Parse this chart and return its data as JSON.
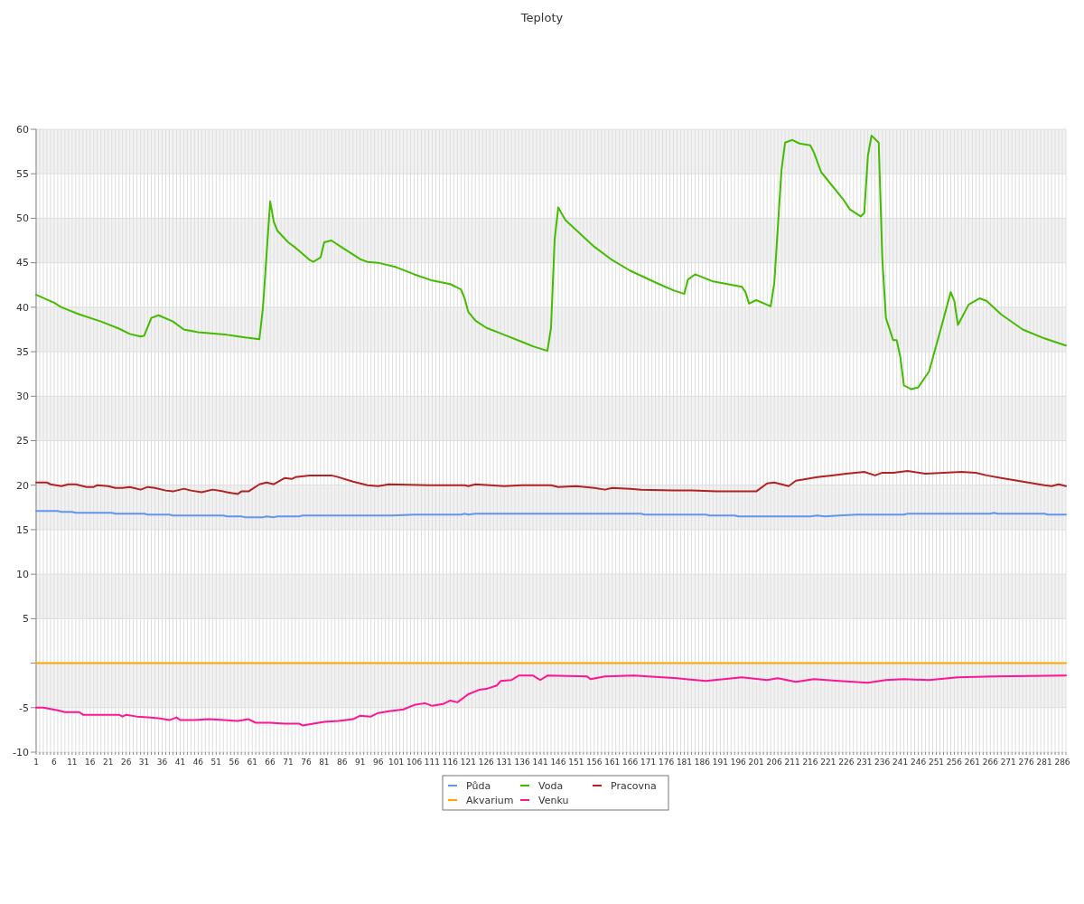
{
  "chart_data": {
    "type": "line",
    "title": "Teploty",
    "xlim": [
      1,
      287
    ],
    "xticks": [
      1,
      {
        "value": 2,
        "label": null
      },
      {
        "value": 3,
        "label": null
      },
      {
        "value": 4,
        "label": null
      },
      {
        "value": 5,
        "label": null
      },
      6,
      {
        "value": 7,
        "label": null
      },
      {
        "value": 8,
        "label": null
      },
      {
        "value": 9,
        "label": null
      },
      {
        "value": 10,
        "label": null
      },
      11,
      {
        "value": 12,
        "label": null
      },
      {
        "value": 13,
        "label": null
      },
      {
        "value": 14,
        "label": null
      },
      {
        "value": 15,
        "label": null
      },
      16,
      {
        "value": 17,
        "label": null
      },
      {
        "value": 18,
        "label": null
      },
      {
        "value": 19,
        "label": null
      },
      {
        "value": 20,
        "label": null
      },
      21,
      {
        "value": 22,
        "label": null
      },
      {
        "value": 23,
        "label": null
      },
      {
        "value": 24,
        "label": null
      },
      {
        "value": 25,
        "label": null
      },
      26,
      {
        "value": 27,
        "label": null
      },
      {
        "value": 28,
        "label": null
      },
      {
        "value": 29,
        "label": null
      },
      {
        "value": 30,
        "label": null
      },
      31,
      {
        "value": 32,
        "label": null
      },
      {
        "value": 33,
        "label": null
      },
      {
        "value": 34,
        "label": null
      },
      {
        "value": 35,
        "label": null
      },
      36,
      {
        "value": 37,
        "label": null
      },
      {
        "value": 38,
        "label": null
      },
      {
        "value": 39,
        "label": null
      },
      {
        "value": 40,
        "label": null
      },
      41,
      {
        "value": 42,
        "label": null
      },
      {
        "value": 43,
        "label": null
      },
      {
        "value": 44,
        "label": null
      },
      {
        "value": 45,
        "label": null
      },
      46,
      {
        "value": 47,
        "label": null
      },
      {
        "value": 48,
        "label": null
      },
      {
        "value": 49,
        "label": null
      },
      {
        "value": 50,
        "label": null
      },
      51,
      {
        "value": 52,
        "label": null
      },
      {
        "value": 53,
        "label": null
      },
      {
        "value": 54,
        "label": null
      },
      {
        "value": 55,
        "label": null
      },
      56,
      {
        "value": 57,
        "label": null
      },
      {
        "value": 58,
        "label": null
      },
      {
        "value": 59,
        "label": null
      },
      {
        "value": 60,
        "label": null
      },
      61,
      {
        "value": 62,
        "label": null
      },
      {
        "value": 63,
        "label": null
      },
      {
        "value": 64,
        "label": null
      },
      {
        "value": 65,
        "label": null
      },
      66,
      {
        "value": 67,
        "label": null
      },
      {
        "value": 68,
        "label": null
      },
      {
        "value": 69,
        "label": null
      },
      {
        "value": 70,
        "label": null
      },
      71,
      {
        "value": 72,
        "label": null
      },
      {
        "value": 73,
        "label": null
      },
      {
        "value": 74,
        "label": null
      },
      {
        "value": 75,
        "label": null
      },
      76,
      {
        "value": 77,
        "label": null
      },
      {
        "value": 78,
        "label": null
      },
      {
        "value": 79,
        "label": null
      },
      {
        "value": 80,
        "label": null
      },
      81,
      {
        "value": 82,
        "label": null
      },
      {
        "value": 83,
        "label": null
      },
      {
        "value": 84,
        "label": null
      },
      {
        "value": 85,
        "label": null
      },
      86,
      {
        "value": 87,
        "label": null
      },
      {
        "value": 88,
        "label": null
      },
      {
        "value": 89,
        "label": null
      },
      {
        "value": 90,
        "label": null
      },
      91,
      {
        "value": 92,
        "label": null
      },
      {
        "value": 93,
        "label": null
      },
      {
        "value": 94,
        "label": null
      },
      {
        "value": 95,
        "label": null
      },
      96,
      {
        "value": 97,
        "label": null
      },
      {
        "value": 98,
        "label": null
      },
      {
        "value": 99,
        "label": null
      },
      {
        "value": 100,
        "label": null
      },
      101,
      {
        "value": 102,
        "label": null
      },
      {
        "value": 103,
        "label": null
      },
      {
        "value": 104,
        "label": null
      },
      {
        "value": 105,
        "label": null
      },
      106,
      {
        "value": 107,
        "label": null
      },
      {
        "value": 108,
        "label": null
      },
      {
        "value": 109,
        "label": null
      },
      {
        "value": 110,
        "label": null
      },
      111,
      {
        "value": 112,
        "label": null
      },
      {
        "value": 113,
        "label": null
      },
      {
        "value": 114,
        "label": null
      },
      {
        "value": 115,
        "label": null
      },
      116,
      {
        "value": 117,
        "label": null
      },
      {
        "value": 118,
        "label": null
      },
      {
        "value": 119,
        "label": null
      },
      {
        "value": 120,
        "label": null
      },
      121,
      {
        "value": 122,
        "label": null
      },
      {
        "value": 123,
        "label": null
      },
      {
        "value": 124,
        "label": null
      },
      {
        "value": 125,
        "label": null
      },
      126,
      {
        "value": 127,
        "label": null
      },
      {
        "value": 128,
        "label": null
      },
      {
        "value": 129,
        "label": null
      },
      {
        "value": 130,
        "label": null
      },
      131,
      {
        "value": 132,
        "label": null
      },
      {
        "value": 133,
        "label": null
      },
      {
        "value": 134,
        "label": null
      },
      {
        "value": 135,
        "label": null
      },
      136,
      {
        "value": 137,
        "label": null
      },
      {
        "value": 138,
        "label": null
      },
      {
        "value": 139,
        "label": null
      },
      {
        "value": 140,
        "label": null
      },
      141,
      {
        "value": 142,
        "label": null
      },
      {
        "value": 143,
        "label": null
      },
      {
        "value": 144,
        "label": null
      },
      {
        "value": 145,
        "label": null
      },
      146,
      {
        "value": 147,
        "label": null
      },
      {
        "value": 148,
        "label": null
      },
      {
        "value": 149,
        "label": null
      },
      {
        "value": 150,
        "label": null
      },
      151,
      {
        "value": 152,
        "label": null
      },
      {
        "value": 153,
        "label": null
      },
      {
        "value": 154,
        "label": null
      },
      {
        "value": 155,
        "label": null
      },
      156,
      {
        "value": 157,
        "label": null
      },
      {
        "value": 158,
        "label": null
      },
      {
        "value": 159,
        "label": null
      },
      {
        "value": 160,
        "label": null
      },
      161,
      {
        "value": 162,
        "label": null
      },
      {
        "value": 163,
        "label": null
      },
      {
        "value": 164,
        "label": null
      },
      {
        "value": 165,
        "label": null
      },
      166,
      {
        "value": 167,
        "label": null
      },
      {
        "value": 168,
        "label": null
      },
      {
        "value": 169,
        "label": null
      },
      {
        "value": 170,
        "label": null
      },
      171,
      {
        "value": 172,
        "label": null
      },
      {
        "value": 173,
        "label": null
      },
      {
        "value": 174,
        "label": null
      },
      {
        "value": 175,
        "label": null
      },
      176,
      {
        "value": 177,
        "label": null
      },
      {
        "value": 178,
        "label": null
      },
      {
        "value": 179,
        "label": null
      },
      {
        "value": 180,
        "label": null
      },
      181,
      {
        "value": 182,
        "label": null
      },
      {
        "value": 183,
        "label": null
      },
      {
        "value": 184,
        "label": null
      },
      {
        "value": 185,
        "label": null
      },
      186,
      {
        "value": 187,
        "label": null
      },
      {
        "value": 188,
        "label": null
      },
      {
        "value": 189,
        "label": null
      },
      {
        "value": 190,
        "label": null
      },
      191,
      {
        "value": 192,
        "label": null
      },
      {
        "value": 193,
        "label": null
      },
      {
        "value": 194,
        "label": null
      },
      {
        "value": 195,
        "label": null
      },
      196,
      {
        "value": 197,
        "label": null
      },
      {
        "value": 198,
        "label": null
      },
      {
        "value": 199,
        "label": null
      },
      {
        "value": 200,
        "label": null
      },
      201,
      {
        "value": 202,
        "label": null
      },
      {
        "value": 203,
        "label": null
      },
      {
        "value": 204,
        "label": null
      },
      {
        "value": 205,
        "label": null
      },
      206,
      {
        "value": 207,
        "label": null
      },
      {
        "value": 208,
        "label": null
      },
      {
        "value": 209,
        "label": null
      },
      {
        "value": 210,
        "label": null
      },
      211,
      {
        "value": 212,
        "label": null
      },
      {
        "value": 213,
        "label": null
      },
      {
        "value": 214,
        "label": null
      },
      {
        "value": 215,
        "label": null
      },
      216,
      {
        "value": 217,
        "label": null
      },
      {
        "value": 218,
        "label": null
      },
      {
        "value": 219,
        "label": null
      },
      {
        "value": 220,
        "label": null
      },
      221,
      {
        "value": 222,
        "label": null
      },
      {
        "value": 223,
        "label": null
      },
      {
        "value": 224,
        "label": null
      },
      {
        "value": 225,
        "label": null
      },
      226,
      {
        "value": 227,
        "label": null
      },
      {
        "value": 228,
        "label": null
      },
      {
        "value": 229,
        "label": null
      },
      {
        "value": 230,
        "label": null
      },
      231,
      {
        "value": 232,
        "label": null
      },
      {
        "value": 233,
        "label": null
      },
      {
        "value": 234,
        "label": null
      },
      {
        "value": 235,
        "label": null
      },
      236,
      {
        "value": 237,
        "label": null
      },
      {
        "value": 238,
        "label": null
      },
      {
        "value": 239,
        "label": null
      },
      {
        "value": 240,
        "label": null
      },
      241,
      {
        "value": 242,
        "label": null
      },
      {
        "value": 243,
        "label": null
      },
      {
        "value": 244,
        "label": null
      },
      {
        "value": 245,
        "label": null
      },
      246,
      {
        "value": 247,
        "label": null
      },
      {
        "value": 248,
        "label": null
      },
      {
        "value": 249,
        "label": null
      },
      {
        "value": 250,
        "label": null
      },
      251,
      {
        "value": 252,
        "label": null
      },
      {
        "value": 253,
        "label": null
      },
      {
        "value": 254,
        "label": null
      },
      {
        "value": 255,
        "label": null
      },
      256,
      {
        "value": 257,
        "label": null
      },
      {
        "value": 258,
        "label": null
      },
      {
        "value": 259,
        "label": null
      },
      {
        "value": 260,
        "label": null
      },
      261,
      {
        "value": 262,
        "label": null
      },
      {
        "value": 263,
        "label": null
      },
      {
        "value": 264,
        "label": null
      },
      {
        "value": 265,
        "label": null
      },
      266,
      {
        "value": 267,
        "label": null
      },
      {
        "value": 268,
        "label": null
      },
      {
        "value": 269,
        "label": null
      },
      {
        "value": 270,
        "label": null
      },
      271,
      {
        "value": 272,
        "label": null
      },
      {
        "value": 273,
        "label": null
      },
      {
        "value": 274,
        "label": null
      },
      {
        "value": 275,
        "label": null
      },
      276,
      {
        "value": 277,
        "label": null
      },
      {
        "value": 278,
        "label": null
      },
      {
        "value": 279,
        "label": null
      },
      {
        "value": 280,
        "label": null
      },
      281,
      {
        "value": 282,
        "label": null
      },
      {
        "value": 283,
        "label": null
      },
      {
        "value": 284,
        "label": null
      },
      {
        "value": 285,
        "label": null
      },
      286,
      {
        "value": 287,
        "label": null
      }
    ],
    "ylim": [
      -10,
      60
    ],
    "yticks": [
      -10,
      -5,
      {
        "value": 0,
        "label": null
      },
      5,
      10,
      15,
      20,
      25,
      30,
      35,
      40,
      45,
      50,
      55,
      60
    ],
    "grid": true,
    "legend": "bottom",
    "marker": "none",
    "line_style": "solid",
    "series": [
      {
        "name": "Půda",
        "color": "#6495ed",
        "x": [
          1,
          7,
          8,
          11,
          12,
          22,
          23,
          31,
          32,
          38,
          39,
          53,
          54,
          58,
          59,
          64,
          65,
          67,
          68,
          74,
          75,
          100,
          106,
          119,
          120,
          121,
          123,
          169,
          170,
          187,
          188,
          195,
          196,
          216,
          218,
          220,
          224,
          229,
          242,
          243,
          266,
          267,
          268,
          281,
          282,
          287
        ],
        "values": [
          17.1,
          17.1,
          17.0,
          17.0,
          16.9,
          16.9,
          16.8,
          16.8,
          16.7,
          16.7,
          16.6,
          16.6,
          16.5,
          16.5,
          16.4,
          16.4,
          16.5,
          16.4,
          16.5,
          16.5,
          16.6,
          16.6,
          16.7,
          16.7,
          16.8,
          16.7,
          16.8,
          16.8,
          16.7,
          16.7,
          16.6,
          16.6,
          16.5,
          16.5,
          16.6,
          16.5,
          16.6,
          16.7,
          16.7,
          16.8,
          16.8,
          16.9,
          16.8,
          16.8,
          16.7,
          16.7
        ]
      },
      {
        "name": "Voda",
        "color": "#44bb00",
        "x": [
          1,
          6,
          8,
          13,
          19,
          24,
          27,
          30,
          31,
          33,
          35,
          39,
          42,
          46,
          54,
          59,
          63,
          64,
          66,
          67,
          68,
          71,
          73,
          75,
          77,
          78,
          80,
          81,
          83,
          86,
          91,
          93,
          96,
          101,
          106,
          111,
          116,
          119,
          120,
          121,
          123,
          126,
          131,
          136,
          139,
          143,
          144,
          145,
          146,
          148,
          152,
          156,
          161,
          166,
          174,
          178,
          181,
          182,
          184,
          189,
          197,
          198,
          199,
          201,
          205,
          206,
          208,
          209,
          211,
          213,
          216,
          217,
          219,
          225,
          227,
          230,
          231,
          232,
          233,
          235,
          236,
          237,
          239,
          240,
          241,
          242,
          244,
          246,
          249,
          252,
          255,
          256,
          257,
          260,
          263,
          265,
          269,
          275,
          281,
          287
        ],
        "values": [
          41.4,
          40.5,
          40.0,
          39.2,
          38.4,
          37.6,
          37.0,
          36.7,
          36.8,
          38.8,
          39.1,
          38.4,
          37.5,
          37.2,
          36.9,
          36.6,
          36.4,
          40.0,
          51.9,
          49.6,
          48.6,
          47.3,
          46.7,
          46.0,
          45.3,
          45.1,
          45.6,
          47.3,
          47.5,
          46.7,
          45.4,
          45.1,
          45.0,
          44.5,
          43.7,
          43.0,
          42.6,
          42.0,
          41.0,
          39.5,
          38.5,
          37.7,
          36.9,
          36.1,
          35.6,
          35.1,
          37.7,
          47.6,
          51.2,
          49.8,
          48.3,
          46.8,
          45.3,
          44.1,
          42.6,
          41.9,
          41.5,
          43.1,
          43.7,
          42.9,
          42.3,
          41.7,
          40.4,
          40.8,
          40.1,
          42.7,
          55.4,
          58.5,
          58.8,
          58.4,
          58.2,
          57.4,
          55.2,
          52.2,
          51.0,
          50.2,
          50.6,
          57.0,
          59.3,
          58.5,
          45.5,
          38.8,
          36.3,
          36.3,
          34.4,
          31.2,
          30.8,
          31.0,
          32.8,
          37.2,
          41.7,
          40.7,
          38.0,
          40.3,
          41.0,
          40.7,
          39.2,
          37.5,
          36.5,
          35.7
        ]
      },
      {
        "name": "Pracovna",
        "color": "#b22222",
        "x": [
          1,
          4,
          5,
          8,
          10,
          12,
          15,
          17,
          18,
          21,
          23,
          25,
          27,
          30,
          32,
          34,
          37,
          39,
          42,
          44,
          47,
          50,
          53,
          54,
          57,
          58,
          60,
          63,
          65,
          67,
          70,
          72,
          73,
          77,
          83,
          85,
          89,
          93,
          96,
          99,
          110,
          120,
          121,
          123,
          131,
          136,
          139,
          144,
          146,
          151,
          156,
          159,
          161,
          166,
          169,
          178,
          183,
          190,
          198,
          201,
          204,
          206,
          210,
          212,
          218,
          222,
          226,
          231,
          234,
          236,
          239,
          243,
          248,
          258,
          262,
          265,
          269,
          275,
          281,
          283,
          285,
          287
        ],
        "values": [
          20.3,
          20.3,
          20.1,
          19.9,
          20.1,
          20.1,
          19.8,
          19.8,
          20.0,
          19.9,
          19.7,
          19.7,
          19.8,
          19.5,
          19.8,
          19.7,
          19.4,
          19.3,
          19.6,
          19.4,
          19.2,
          19.5,
          19.3,
          19.2,
          19.0,
          19.3,
          19.3,
          20.1,
          20.3,
          20.1,
          20.8,
          20.7,
          20.9,
          21.1,
          21.1,
          20.9,
          20.4,
          20.0,
          19.9,
          20.1,
          20.0,
          20.0,
          19.9,
          20.1,
          19.9,
          20.0,
          20.0,
          20.0,
          19.8,
          19.9,
          19.7,
          19.5,
          19.7,
          19.6,
          19.5,
          19.4,
          19.4,
          19.3,
          19.3,
          19.3,
          20.2,
          20.3,
          19.9,
          20.5,
          20.9,
          21.1,
          21.3,
          21.5,
          21.1,
          21.4,
          21.4,
          21.6,
          21.3,
          21.5,
          21.4,
          21.1,
          20.8,
          20.4,
          20.0,
          19.9,
          20.1,
          19.9
        ]
      },
      {
        "name": "Akvarium",
        "color": "#ffa500",
        "x": [
          1,
          287
        ],
        "values": [
          0,
          0
        ]
      },
      {
        "name": "Venku",
        "color": "#ff1493",
        "x": [
          1,
          3,
          7,
          9,
          13,
          14,
          24,
          25,
          26,
          29,
          32,
          35,
          38,
          40,
          41,
          45,
          49,
          57,
          60,
          62,
          66,
          70,
          74,
          75,
          78,
          81,
          85,
          89,
          91,
          94,
          96,
          99,
          103,
          106,
          109,
          111,
          114,
          116,
          118,
          120,
          121,
          124,
          126,
          129,
          130,
          133,
          135,
          139,
          141,
          143,
          154,
          155,
          159,
          167,
          179,
          187,
          192,
          197,
          204,
          207,
          212,
          217,
          224,
          232,
          237,
          242,
          249,
          257,
          267,
          287
        ],
        "values": [
          -5.0,
          -5.0,
          -5.3,
          -5.5,
          -5.5,
          -5.8,
          -5.8,
          -6.0,
          -5.8,
          -6.0,
          -6.1,
          -6.2,
          -6.4,
          -6.1,
          -6.4,
          -6.4,
          -6.3,
          -6.5,
          -6.3,
          -6.7,
          -6.7,
          -6.8,
          -6.8,
          -7.0,
          -6.8,
          -6.6,
          -6.5,
          -6.3,
          -5.9,
          -6.0,
          -5.6,
          -5.4,
          -5.2,
          -4.7,
          -4.5,
          -4.8,
          -4.6,
          -4.2,
          -4.4,
          -3.8,
          -3.5,
          -3.0,
          -2.9,
          -2.5,
          -2.0,
          -1.9,
          -1.4,
          -1.4,
          -1.9,
          -1.4,
          -1.5,
          -1.8,
          -1.5,
          -1.4,
          -1.7,
          -2.0,
          -1.8,
          -1.6,
          -1.9,
          -1.7,
          -2.1,
          -1.8,
          -2.0,
          -2.2,
          -1.9,
          -1.8,
          -1.9,
          -1.6,
          -1.5,
          -1.4
        ]
      }
    ]
  }
}
